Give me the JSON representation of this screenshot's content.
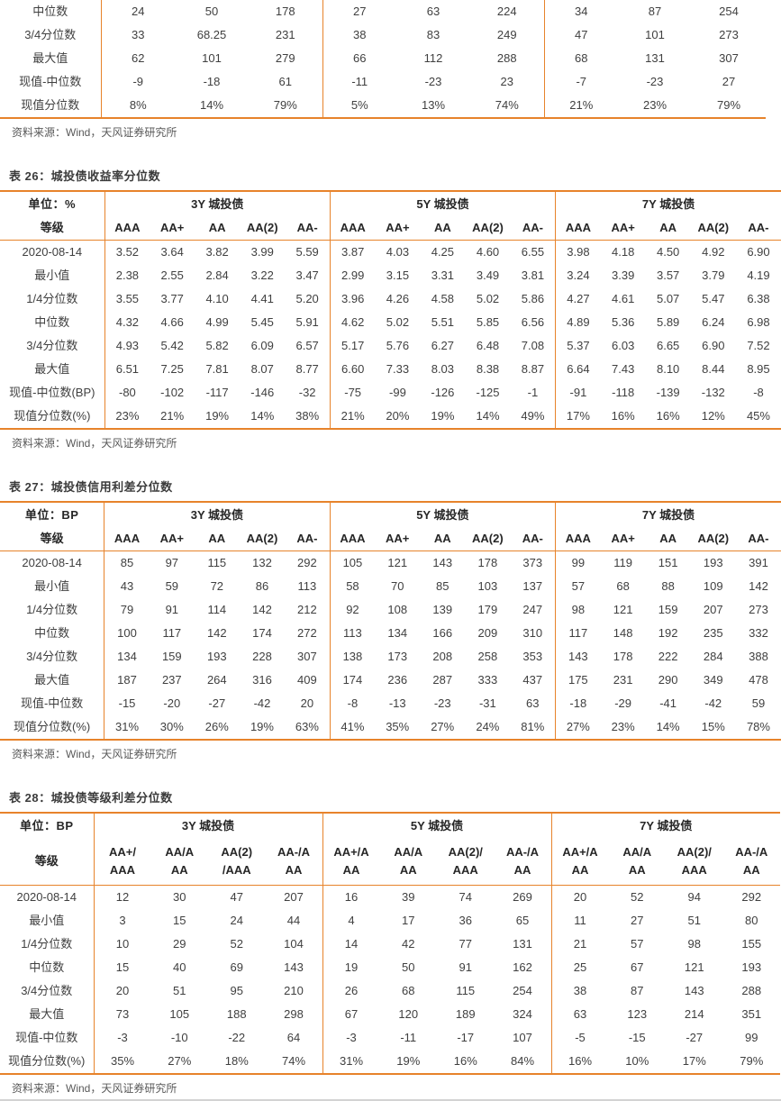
{
  "source_note": "资料来源：Wind，天风证券研究所",
  "accent_color": "#E7832B",
  "tables": [
    {
      "name": "top-table-fragment",
      "title": null,
      "group_size": 3,
      "row_labels": [
        "中位数",
        "3/4分位数",
        "最大值",
        "现值-中位数",
        "现值分位数"
      ],
      "rows": [
        [
          "24",
          "50",
          "178",
          "27",
          "63",
          "224",
          "34",
          "87",
          "254"
        ],
        [
          "33",
          "68.25",
          "231",
          "38",
          "83",
          "249",
          "47",
          "101",
          "273"
        ],
        [
          "62",
          "101",
          "279",
          "66",
          "112",
          "288",
          "68",
          "131",
          "307"
        ],
        [
          "-9",
          "-18",
          "61",
          "-11",
          "-23",
          "23",
          "-7",
          "-23",
          "27"
        ],
        [
          "8%",
          "14%",
          "79%",
          "5%",
          "13%",
          "74%",
          "21%",
          "23%",
          "79%"
        ]
      ]
    },
    {
      "name": "table-26",
      "title": "表 26：城投债收益率分位数",
      "unit": "单位：%",
      "grade": "等级",
      "groups": [
        "3Y 城投债",
        "5Y 城投债",
        "7Y 城投债"
      ],
      "col_headers": [
        [
          "AAA",
          "AA+",
          "AA",
          "AA(2)",
          "AA-"
        ],
        [
          "AAA",
          "AA+",
          "AA",
          "AA(2)",
          "AA-"
        ],
        [
          "AAA",
          "AA+",
          "AA",
          "AA(2)",
          "AA-"
        ]
      ],
      "row_labels": [
        "2020-08-14",
        "最小值",
        "1/4分位数",
        "中位数",
        "3/4分位数",
        "最大值",
        "现值-中位数(BP)",
        "现值分位数(%)"
      ],
      "rows": [
        [
          "3.52",
          "3.64",
          "3.82",
          "3.99",
          "5.59",
          "3.87",
          "4.03",
          "4.25",
          "4.60",
          "6.55",
          "3.98",
          "4.18",
          "4.50",
          "4.92",
          "6.90"
        ],
        [
          "2.38",
          "2.55",
          "2.84",
          "3.22",
          "3.47",
          "2.99",
          "3.15",
          "3.31",
          "3.49",
          "3.81",
          "3.24",
          "3.39",
          "3.57",
          "3.79",
          "4.19"
        ],
        [
          "3.55",
          "3.77",
          "4.10",
          "4.41",
          "5.20",
          "3.96",
          "4.26",
          "4.58",
          "5.02",
          "5.86",
          "4.27",
          "4.61",
          "5.07",
          "5.47",
          "6.38"
        ],
        [
          "4.32",
          "4.66",
          "4.99",
          "5.45",
          "5.91",
          "4.62",
          "5.02",
          "5.51",
          "5.85",
          "6.56",
          "4.89",
          "5.36",
          "5.89",
          "6.24",
          "6.98"
        ],
        [
          "4.93",
          "5.42",
          "5.82",
          "6.09",
          "6.57",
          "5.17",
          "5.76",
          "6.27",
          "6.48",
          "7.08",
          "5.37",
          "6.03",
          "6.65",
          "6.90",
          "7.52"
        ],
        [
          "6.51",
          "7.25",
          "7.81",
          "8.07",
          "8.77",
          "6.60",
          "7.33",
          "8.03",
          "8.38",
          "8.87",
          "6.64",
          "7.43",
          "8.10",
          "8.44",
          "8.95"
        ],
        [
          "-80",
          "-102",
          "-117",
          "-146",
          "-32",
          "-75",
          "-99",
          "-126",
          "-125",
          "-1",
          "-91",
          "-118",
          "-139",
          "-132",
          "-8"
        ],
        [
          "23%",
          "21%",
          "19%",
          "14%",
          "38%",
          "21%",
          "20%",
          "19%",
          "14%",
          "49%",
          "17%",
          "16%",
          "16%",
          "12%",
          "45%"
        ]
      ]
    },
    {
      "name": "table-27",
      "title": "表 27：城投债信用利差分位数",
      "unit": "单位：BP",
      "grade": "等级",
      "groups": [
        "3Y 城投债",
        "5Y 城投债",
        "7Y 城投债"
      ],
      "col_headers": [
        [
          "AAA",
          "AA+",
          "AA",
          "AA(2)",
          "AA-"
        ],
        [
          "AAA",
          "AA+",
          "AA",
          "AA(2)",
          "AA-"
        ],
        [
          "AAA",
          "AA+",
          "AA",
          "AA(2)",
          "AA-"
        ]
      ],
      "row_labels": [
        "2020-08-14",
        "最小值",
        "1/4分位数",
        "中位数",
        "3/4分位数",
        "最大值",
        "现值-中位数",
        "现值分位数(%)"
      ],
      "rows": [
        [
          "85",
          "97",
          "115",
          "132",
          "292",
          "105",
          "121",
          "143",
          "178",
          "373",
          "99",
          "119",
          "151",
          "193",
          "391"
        ],
        [
          "43",
          "59",
          "72",
          "86",
          "113",
          "58",
          "70",
          "85",
          "103",
          "137",
          "57",
          "68",
          "88",
          "109",
          "142"
        ],
        [
          "79",
          "91",
          "114",
          "142",
          "212",
          "92",
          "108",
          "139",
          "179",
          "247",
          "98",
          "121",
          "159",
          "207",
          "273"
        ],
        [
          "100",
          "117",
          "142",
          "174",
          "272",
          "113",
          "134",
          "166",
          "209",
          "310",
          "117",
          "148",
          "192",
          "235",
          "332"
        ],
        [
          "134",
          "159",
          "193",
          "228",
          "307",
          "138",
          "173",
          "208",
          "258",
          "353",
          "143",
          "178",
          "222",
          "284",
          "388"
        ],
        [
          "187",
          "237",
          "264",
          "316",
          "409",
          "174",
          "236",
          "287",
          "333",
          "437",
          "175",
          "231",
          "290",
          "349",
          "478"
        ],
        [
          "-15",
          "-20",
          "-27",
          "-42",
          "20",
          "-8",
          "-13",
          "-23",
          "-31",
          "63",
          "-18",
          "-29",
          "-41",
          "-42",
          "59"
        ],
        [
          "31%",
          "30%",
          "26%",
          "19%",
          "63%",
          "41%",
          "35%",
          "27%",
          "24%",
          "81%",
          "27%",
          "23%",
          "14%",
          "15%",
          "78%"
        ]
      ]
    },
    {
      "name": "table-28",
      "title": "表 28：城投债等级利差分位数",
      "unit": "单位：BP",
      "grade": "等级",
      "groups": [
        "3Y 城投债",
        "5Y 城投债",
        "7Y 城投债"
      ],
      "col_headers": [
        [
          [
            "AA+/",
            "AAA"
          ],
          [
            "AA/A",
            "AA"
          ],
          [
            "AA(2)",
            "/AAA"
          ],
          [
            "AA-/A",
            "AA"
          ]
        ],
        [
          [
            "AA+/A",
            "AA"
          ],
          [
            "AA/A",
            "AA"
          ],
          [
            "AA(2)/",
            "AAA"
          ],
          [
            "AA-/A",
            "AA"
          ]
        ],
        [
          [
            "AA+/A",
            "AA"
          ],
          [
            "AA/A",
            "AA"
          ],
          [
            "AA(2)/",
            "AAA"
          ],
          [
            "AA-/A",
            "AA"
          ]
        ]
      ],
      "row_labels": [
        "2020-08-14",
        "最小值",
        "1/4分位数",
        "中位数",
        "3/4分位数",
        "最大值",
        "现值-中位数",
        "现值分位数(%)"
      ],
      "rows": [
        [
          "12",
          "30",
          "47",
          "207",
          "16",
          "39",
          "74",
          "269",
          "20",
          "52",
          "94",
          "292"
        ],
        [
          "3",
          "15",
          "24",
          "44",
          "4",
          "17",
          "36",
          "65",
          "11",
          "27",
          "51",
          "80"
        ],
        [
          "10",
          "29",
          "52",
          "104",
          "14",
          "42",
          "77",
          "131",
          "21",
          "57",
          "98",
          "155"
        ],
        [
          "15",
          "40",
          "69",
          "143",
          "19",
          "50",
          "91",
          "162",
          "25",
          "67",
          "121",
          "193"
        ],
        [
          "20",
          "51",
          "95",
          "210",
          "26",
          "68",
          "115",
          "254",
          "38",
          "87",
          "143",
          "288"
        ],
        [
          "73",
          "105",
          "188",
          "298",
          "67",
          "120",
          "189",
          "324",
          "63",
          "123",
          "214",
          "351"
        ],
        [
          "-3",
          "-10",
          "-22",
          "64",
          "-3",
          "-11",
          "-17",
          "107",
          "-5",
          "-15",
          "-27",
          "99"
        ],
        [
          "35%",
          "27%",
          "18%",
          "74%",
          "31%",
          "19%",
          "16%",
          "84%",
          "16%",
          "10%",
          "17%",
          "79%"
        ]
      ]
    }
  ]
}
